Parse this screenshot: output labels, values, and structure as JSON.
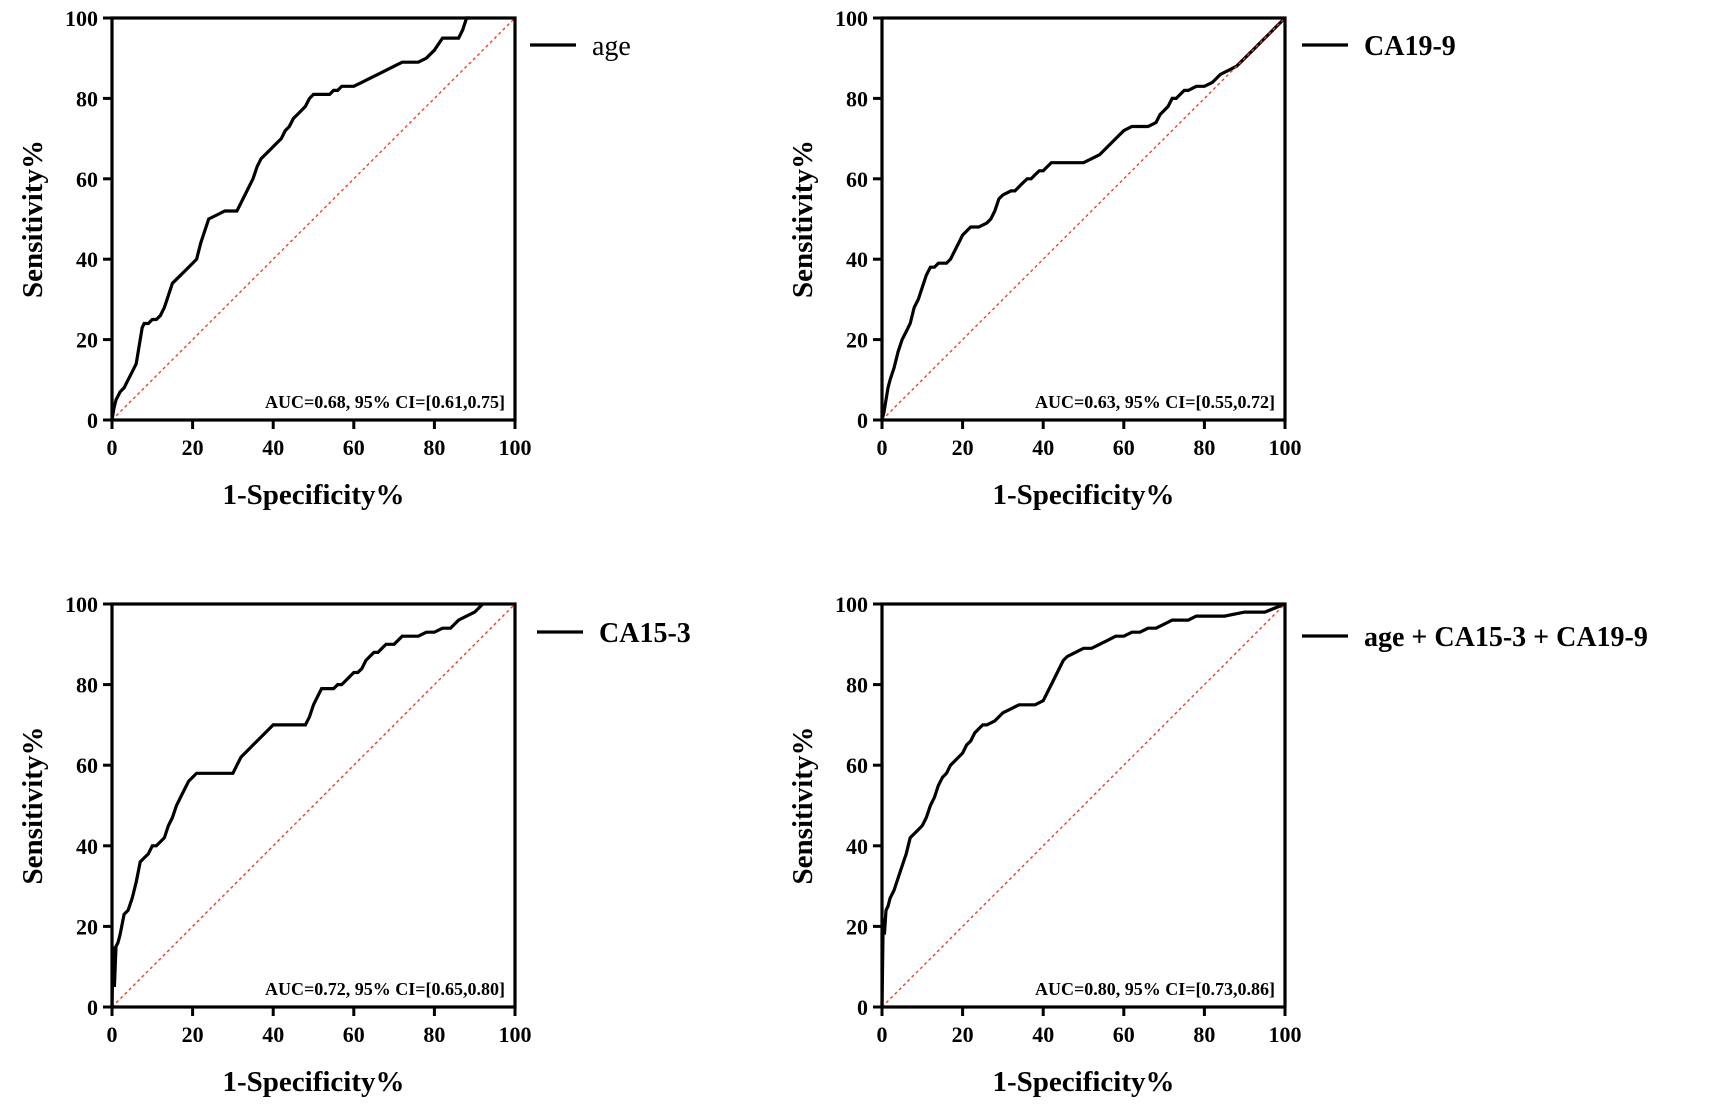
{
  "chart_data": [
    {
      "type": "line",
      "title": "",
      "xlabel": "1-Specificity%",
      "ylabel": "Sensitivity%",
      "xlim": [
        0,
        100
      ],
      "ylim": [
        0,
        100
      ],
      "xticks": [
        "0",
        "20",
        "40",
        "60",
        "80",
        "100"
      ],
      "yticks": [
        "0",
        "20",
        "40",
        "60",
        "80",
        "100"
      ],
      "legend": "age",
      "annotation": "AUC=0.68, 95% CI=[0.61,0.75]",
      "series": [
        {
          "name": "age",
          "color": "#000000",
          "x": [
            0,
            0.5,
            1,
            2,
            3,
            4,
            5,
            6,
            7,
            7.5,
            8,
            9,
            10,
            11,
            12,
            13,
            14,
            15,
            17,
            19,
            21,
            22,
            24,
            26,
            28,
            30,
            31,
            32,
            33,
            34,
            35,
            36,
            37,
            38,
            39,
            40,
            41,
            42,
            43,
            44,
            45,
            46,
            47,
            48,
            49,
            50,
            52,
            54,
            55,
            56,
            57,
            58,
            60,
            62,
            64,
            66,
            68,
            70,
            72,
            74,
            76,
            78,
            80,
            82,
            84,
            86,
            87,
            88,
            89
          ],
          "y": [
            0,
            3,
            5,
            7,
            8,
            10,
            12,
            14,
            20,
            23,
            24,
            24,
            25,
            25,
            26,
            28,
            31,
            34,
            36,
            38,
            40,
            44,
            50,
            51,
            52,
            52,
            52,
            54,
            56,
            58,
            60,
            63,
            65,
            66,
            67,
            68,
            69,
            70,
            72,
            73,
            75,
            76,
            77,
            78,
            80,
            81,
            81,
            81,
            82,
            82,
            83,
            83,
            83,
            84,
            85,
            86,
            87,
            88,
            89,
            89,
            89,
            90,
            92,
            95,
            95,
            95,
            97,
            100,
            100
          ]
        },
        {
          "name": "reference",
          "color": "#e8412f",
          "x": [
            0,
            100
          ],
          "y": [
            0,
            100
          ]
        }
      ]
    },
    {
      "type": "line",
      "title": "",
      "xlabel": "1-Specificity%",
      "ylabel": "Sensitivity%",
      "xlim": [
        0,
        100
      ],
      "ylim": [
        0,
        100
      ],
      "xticks": [
        "0",
        "20",
        "40",
        "60",
        "80",
        "100"
      ],
      "yticks": [
        "0",
        "20",
        "40",
        "60",
        "80",
        "100"
      ],
      "legend": "CA19-9",
      "annotation": "AUC=0.63, 95% CI=[0.55,0.72]",
      "series": [
        {
          "name": "CA19-9",
          "color": "#000000",
          "x": [
            0,
            0.5,
            1,
            1.5,
            2,
            3,
            4,
            5,
            6,
            7,
            8,
            9,
            10,
            11,
            12,
            13,
            14,
            15,
            16,
            17,
            18,
            19,
            20,
            21,
            22,
            24,
            26,
            27,
            28,
            29,
            30,
            32,
            33,
            34,
            35,
            36,
            37,
            38,
            39,
            40,
            41,
            42,
            43,
            44,
            46,
            48,
            50,
            52,
            54,
            56,
            57,
            58,
            60,
            62,
            64,
            66,
            68,
            69,
            70,
            71,
            72,
            73,
            74,
            75,
            76,
            78,
            80,
            82,
            84,
            86,
            88,
            90,
            92,
            94,
            96,
            98,
            100
          ],
          "y": [
            0,
            2,
            5,
            8,
            10,
            13,
            17,
            20,
            22,
            24,
            28,
            30,
            33,
            36,
            38,
            38,
            39,
            39,
            39,
            40,
            42,
            44,
            46,
            47,
            48,
            48,
            49,
            50,
            52,
            55,
            56,
            57,
            57,
            58,
            59,
            60,
            60,
            61,
            62,
            62,
            63,
            64,
            64,
            64,
            64,
            64,
            64,
            65,
            66,
            68,
            69,
            70,
            72,
            73,
            73,
            73,
            74,
            76,
            77,
            78,
            80,
            80,
            81,
            82,
            82,
            83,
            83,
            84,
            86,
            87,
            88,
            90,
            92,
            94,
            96,
            98,
            100
          ]
        },
        {
          "name": "reference",
          "color": "#e8412f",
          "x": [
            0,
            100
          ],
          "y": [
            0,
            100
          ]
        }
      ]
    },
    {
      "type": "line",
      "title": "",
      "xlabel": "1-Specificity%",
      "ylabel": "Sensitivity%",
      "xlim": [
        0,
        100
      ],
      "ylim": [
        0,
        100
      ],
      "xticks": [
        "0",
        "20",
        "40",
        "60",
        "80",
        "100"
      ],
      "yticks": [
        "0",
        "20",
        "40",
        "60",
        "80",
        "100"
      ],
      "legend": "CA15-3",
      "annotation": "AUC=0.72, 95% CI=[0.65,0.80]",
      "series": [
        {
          "name": "CA15-3",
          "color": "#000000",
          "x": [
            0,
            0.3,
            0.6,
            1,
            1.5,
            2,
            3,
            4,
            5,
            6,
            7,
            8,
            9,
            10,
            11,
            12,
            13,
            14,
            15,
            16,
            17,
            18,
            19,
            20,
            21,
            22,
            24,
            26,
            28,
            30,
            31,
            32,
            33,
            34,
            35,
            36,
            37,
            38,
            40,
            42,
            44,
            46,
            48,
            49,
            50,
            51,
            52,
            53,
            54,
            55,
            56,
            57,
            58,
            59,
            60,
            61,
            62,
            63,
            64,
            65,
            66,
            67,
            68,
            70,
            72,
            74,
            76,
            78,
            80,
            82,
            84,
            86,
            88,
            90,
            92
          ],
          "y": [
            0,
            15,
            5,
            15,
            16,
            18,
            23,
            24,
            27,
            31,
            36,
            37,
            38,
            40,
            40,
            41,
            42,
            45,
            47,
            50,
            52,
            54,
            56,
            57,
            58,
            58,
            58,
            58,
            58,
            58,
            60,
            62,
            63,
            64,
            65,
            66,
            67,
            68,
            70,
            70,
            70,
            70,
            70,
            72,
            75,
            77,
            79,
            79,
            79,
            79,
            80,
            80,
            81,
            82,
            83,
            83,
            84,
            86,
            87,
            88,
            88,
            89,
            90,
            90,
            92,
            92,
            92,
            93,
            93,
            94,
            94,
            96,
            97,
            98,
            100
          ]
        },
        {
          "name": "reference",
          "color": "#e8412f",
          "x": [
            0,
            100
          ],
          "y": [
            0,
            100
          ]
        }
      ]
    },
    {
      "type": "line",
      "title": "",
      "xlabel": "1-Specificity%",
      "ylabel": "Sensitivity%",
      "xlim": [
        0,
        100
      ],
      "ylim": [
        0,
        100
      ],
      "xticks": [
        "0",
        "20",
        "40",
        "60",
        "80",
        "100"
      ],
      "yticks": [
        "0",
        "20",
        "40",
        "60",
        "80",
        "100"
      ],
      "legend": "age + CA15-3 + CA19-9",
      "annotation": "AUC=0.80, 95% CI=[0.73,0.86]",
      "series": [
        {
          "name": "age + CA15-3 + CA19-9",
          "color": "#000000",
          "x": [
            0,
            0.3,
            0.6,
            1,
            1.5,
            2,
            3,
            4,
            5,
            6,
            7,
            8,
            9,
            10,
            11,
            12,
            13,
            14,
            15,
            16,
            17,
            18,
            19,
            20,
            21,
            22,
            23,
            24,
            25,
            26,
            28,
            30,
            32,
            34,
            36,
            38,
            40,
            41,
            42,
            43,
            44,
            45,
            46,
            48,
            50,
            52,
            54,
            56,
            58,
            60,
            62,
            64,
            66,
            68,
            70,
            72,
            74,
            76,
            78,
            80,
            85,
            90,
            95,
            100
          ],
          "y": [
            0,
            22,
            18,
            24,
            25,
            27,
            29,
            32,
            35,
            38,
            42,
            43,
            44,
            45,
            47,
            50,
            52,
            55,
            57,
            58,
            60,
            61,
            62,
            63,
            65,
            66,
            68,
            69,
            70,
            70,
            71,
            73,
            74,
            75,
            75,
            75,
            76,
            78,
            80,
            82,
            84,
            86,
            87,
            88,
            89,
            89,
            90,
            91,
            92,
            92,
            93,
            93,
            94,
            94,
            95,
            96,
            96,
            96,
            97,
            97,
            97,
            98,
            98,
            100
          ]
        },
        {
          "name": "reference",
          "color": "#e8412f",
          "x": [
            0,
            100
          ],
          "y": [
            0,
            100
          ]
        }
      ]
    }
  ]
}
